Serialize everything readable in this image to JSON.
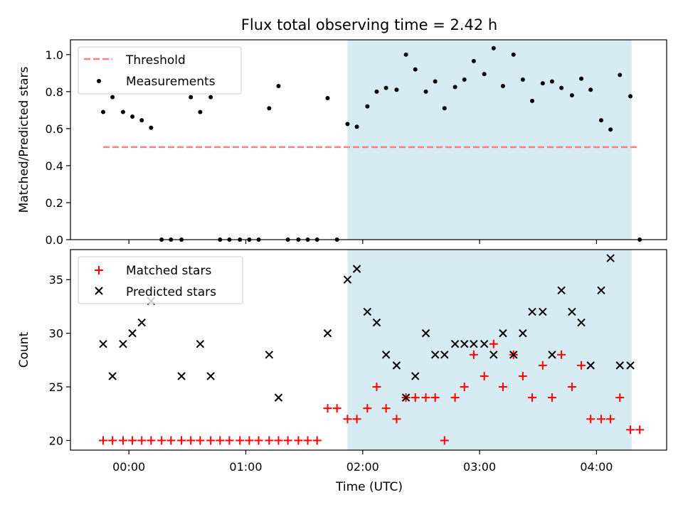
{
  "title": "Flux total observing time = 2.42 h",
  "colors": {
    "threshold": "#ff7f7f",
    "measurement": "#000000",
    "matched": "#ff0000",
    "predicted": "#000000",
    "highlight": "#add8e6"
  },
  "chart_data": [
    {
      "type": "scatter",
      "panel": "top",
      "ylabel": "Matched/Predicted stars",
      "xlabel": "",
      "xlim": [
        -0.5,
        4.6
      ],
      "ylim": [
        0,
        1.08
      ],
      "yticks": [
        0.0,
        0.2,
        0.4,
        0.6,
        0.8,
        1.0
      ],
      "ytick_labels": [
        "0.0",
        "0.2",
        "0.4",
        "0.6",
        "0.8",
        "1.0"
      ],
      "xticks": [
        0,
        1,
        2,
        3,
        4
      ],
      "highlight_span": [
        1.87,
        4.3
      ],
      "threshold": {
        "name": "Threshold",
        "y": 0.5,
        "x": [
          -0.22,
          4.35
        ]
      },
      "legend": {
        "position": "upper-left",
        "entries": [
          "Threshold",
          "Measurements"
        ]
      },
      "series": [
        {
          "name": "Measurements",
          "x": [
            -0.22,
            -0.14,
            -0.05,
            0.03,
            0.11,
            0.19,
            0.28,
            0.36,
            0.45,
            0.53,
            0.61,
            0.7,
            0.78,
            0.86,
            0.95,
            1.03,
            1.11,
            1.2,
            1.28,
            1.36,
            1.45,
            1.53,
            1.61,
            1.7,
            1.78,
            1.87,
            1.95,
            2.04,
            2.12,
            2.2,
            2.29,
            2.37,
            2.45,
            2.54,
            2.62,
            2.7,
            2.79,
            2.87,
            2.95,
            3.04,
            3.12,
            3.2,
            3.29,
            3.37,
            3.45,
            3.54,
            3.62,
            3.7,
            3.79,
            3.87,
            3.95,
            4.04,
            4.12,
            4.2,
            4.29,
            4.37
          ],
          "y": [
            0.69,
            0.77,
            0.69,
            0.665,
            0.645,
            0.605,
            0.0,
            0.0,
            0.0,
            0.77,
            0.69,
            0.77,
            0.0,
            0.0,
            0.0,
            0.0,
            0.0,
            0.71,
            0.83,
            0.0,
            0.0,
            0.0,
            0.0,
            0.765,
            0.0,
            0.625,
            0.61,
            0.72,
            0.8,
            0.82,
            0.81,
            1.0,
            0.92,
            0.8,
            0.855,
            0.71,
            0.825,
            0.865,
            0.965,
            0.895,
            1.035,
            0.83,
            1.0,
            0.865,
            0.75,
            0.845,
            0.855,
            0.82,
            0.78,
            0.87,
            0.81,
            0.645,
            0.595,
            0.89,
            0.775,
            0.0
          ]
        }
      ]
    },
    {
      "type": "scatter",
      "panel": "bottom",
      "xlabel": "Time (UTC)",
      "ylabel": "Count",
      "xlim": [
        -0.5,
        4.6
      ],
      "ylim": [
        19.1,
        37.8
      ],
      "yticks": [
        20,
        25,
        30,
        35
      ],
      "ytick_labels": [
        "20",
        "25",
        "30",
        "35"
      ],
      "xticks": [
        0,
        1,
        2,
        3,
        4
      ],
      "xtick_labels": [
        "00:00",
        "01:00",
        "02:00",
        "03:00",
        "04:00"
      ],
      "highlight_span": [
        1.87,
        4.3
      ],
      "legend": {
        "position": "upper-left",
        "entries": [
          "Matched stars",
          "Predicted stars"
        ]
      },
      "series": [
        {
          "name": "Matched stars",
          "marker": "plus",
          "x": [
            -0.22,
            -0.14,
            -0.05,
            0.03,
            0.11,
            0.19,
            0.28,
            0.36,
            0.45,
            0.53,
            0.61,
            0.7,
            0.78,
            0.86,
            0.95,
            1.03,
            1.11,
            1.2,
            1.28,
            1.36,
            1.45,
            1.53,
            1.61,
            1.7,
            1.78,
            1.87,
            1.95,
            2.04,
            2.12,
            2.2,
            2.29,
            2.37,
            2.45,
            2.54,
            2.62,
            2.7,
            2.79,
            2.87,
            2.95,
            3.04,
            3.12,
            3.2,
            3.29,
            3.37,
            3.45,
            3.54,
            3.62,
            3.7,
            3.79,
            3.87,
            3.95,
            4.04,
            4.12,
            4.2,
            4.29,
            4.37
          ],
          "y": [
            20,
            20,
            20,
            20,
            20,
            20,
            20,
            20,
            20,
            20,
            20,
            20,
            20,
            20,
            20,
            20,
            20,
            20,
            20,
            20,
            20,
            20,
            20,
            23,
            23,
            22,
            22,
            23,
            25,
            23,
            22,
            24,
            24,
            24,
            24,
            20,
            24,
            25,
            28,
            26,
            29,
            25,
            28,
            26,
            24,
            27,
            24,
            28,
            25,
            27,
            22,
            22,
            22,
            24,
            21,
            21
          ]
        },
        {
          "name": "Predicted stars",
          "marker": "x",
          "x": [
            -0.22,
            -0.14,
            -0.05,
            0.03,
            0.11,
            0.19,
            0.45,
            0.61,
            0.7,
            1.2,
            1.28,
            1.7,
            1.87,
            1.95,
            2.04,
            2.12,
            2.2,
            2.29,
            2.37,
            2.45,
            2.54,
            2.62,
            2.7,
            2.79,
            2.87,
            2.95,
            3.04,
            3.12,
            3.2,
            3.29,
            3.37,
            3.45,
            3.54,
            3.62,
            3.7,
            3.79,
            3.87,
            3.95,
            4.04,
            4.12,
            4.2,
            4.29
          ],
          "y": [
            29,
            26,
            29,
            30,
            31,
            33,
            26,
            29,
            26,
            28,
            24,
            30,
            35,
            36,
            32,
            31,
            28,
            27,
            24,
            26,
            30,
            28,
            28,
            29,
            29,
            29,
            29,
            28,
            30,
            28,
            30,
            32,
            32,
            28,
            34,
            32,
            31,
            27,
            34,
            37,
            27,
            27
          ]
        }
      ]
    }
  ]
}
